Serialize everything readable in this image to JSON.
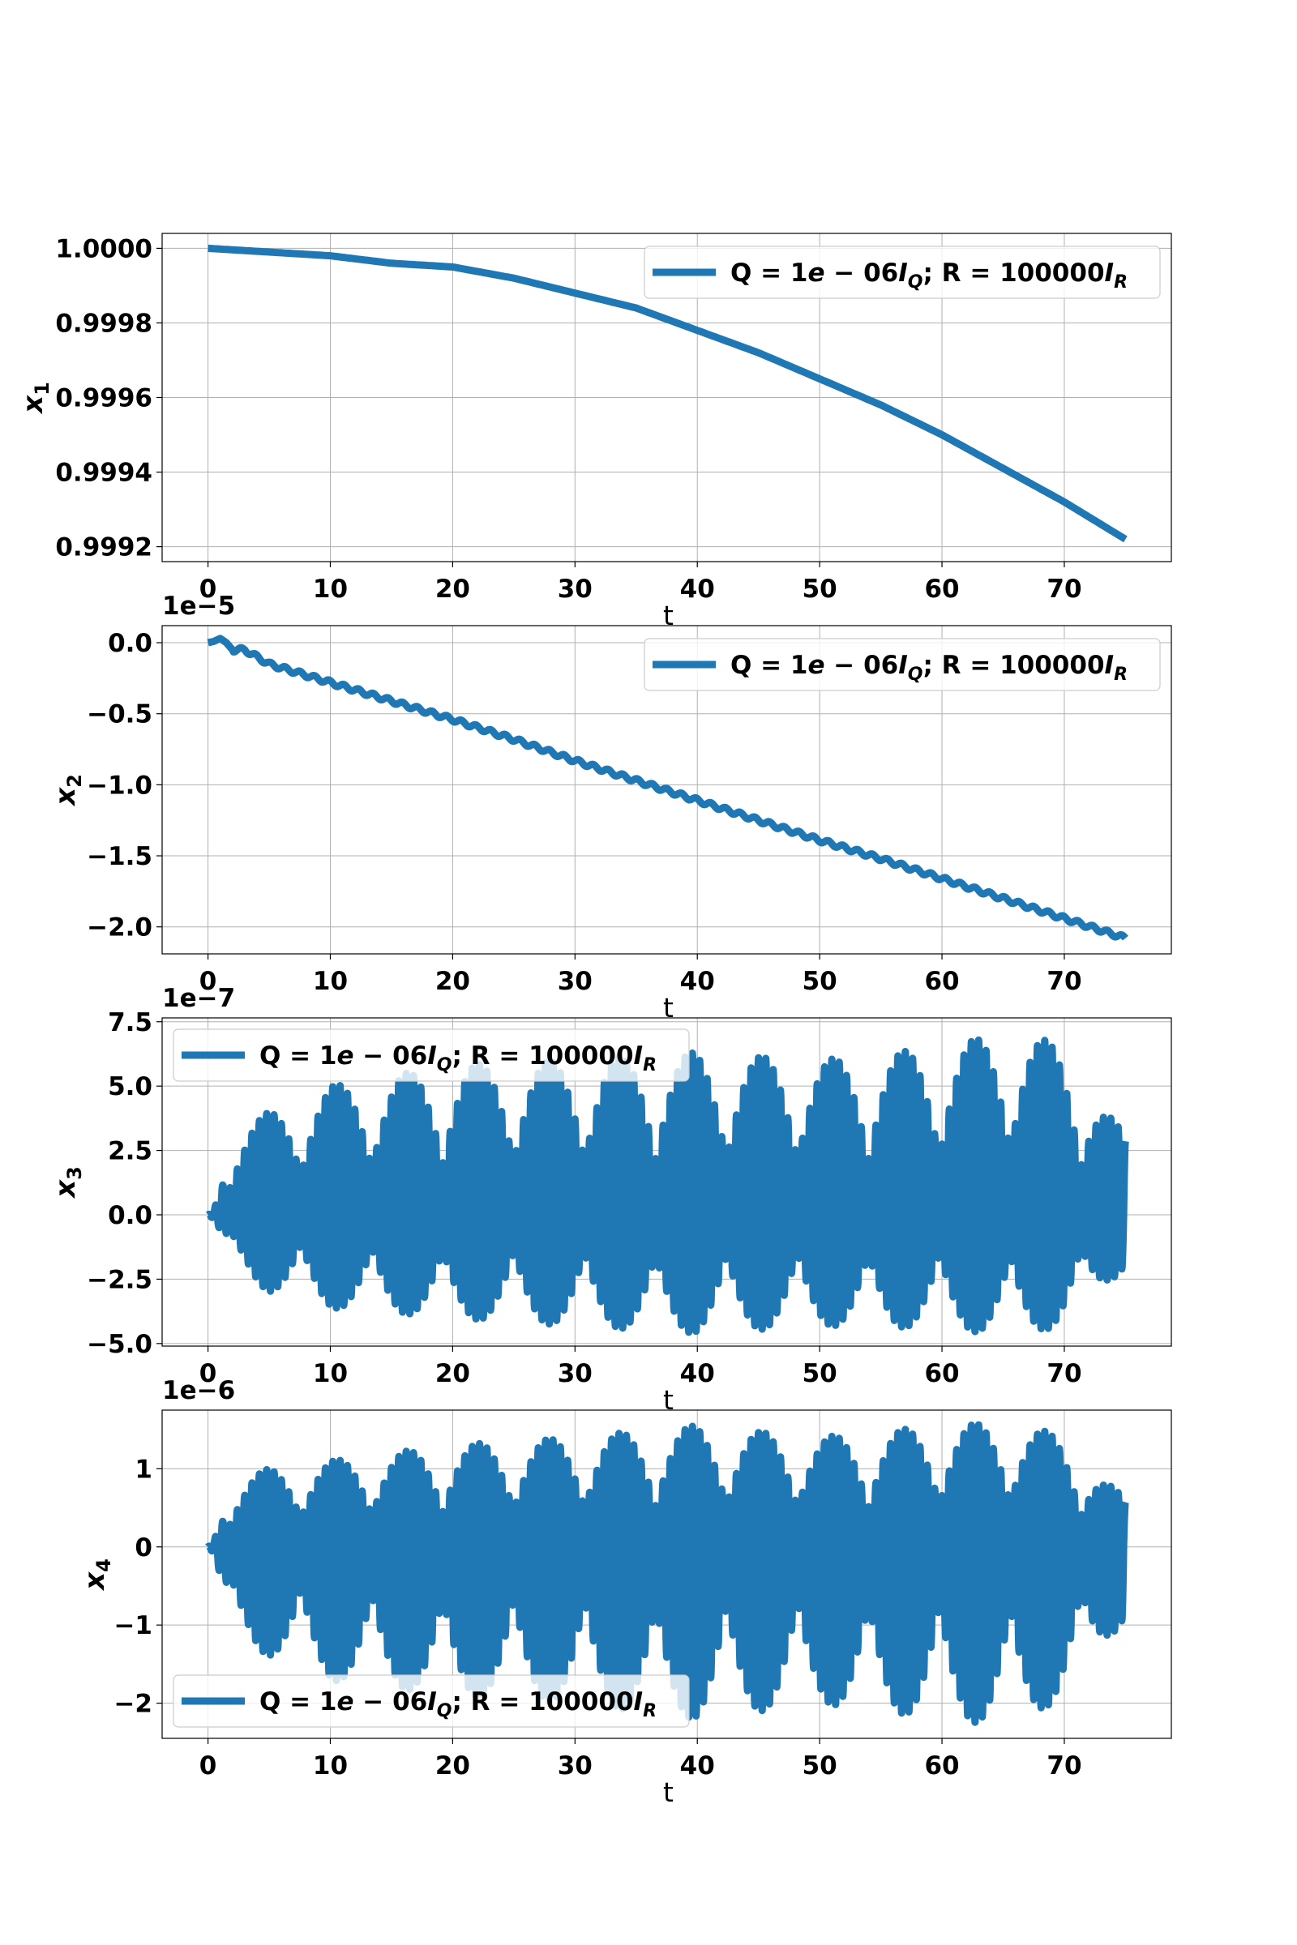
{
  "chart_data": [
    {
      "type": "line",
      "xlabel": "t",
      "ylabel": "x1",
      "ylabel_symbol": "x",
      "ylabel_sub": "1",
      "offset_label": "",
      "xlim": [
        -3.75,
        78.75
      ],
      "ylim": [
        0.99916,
        1.00004
      ],
      "xticks": [
        0,
        10,
        20,
        30,
        40,
        50,
        60,
        70
      ],
      "xtick_labels": [
        "0",
        "10",
        "20",
        "30",
        "40",
        "50",
        "60",
        "70"
      ],
      "yticks": [
        0.9992,
        0.9994,
        0.9996,
        0.9998,
        1.0
      ],
      "ytick_labels": [
        "0.9992",
        "0.9994",
        "0.9996",
        "0.9998",
        "1.0000"
      ],
      "grid": true,
      "legend_position": "upper right",
      "series": [
        {
          "name": "Q = 1e − 06I_Q; R = 100000I_R",
          "color": "#1f77b4",
          "x": [
            0,
            5,
            10,
            15,
            20,
            25,
            30,
            35,
            40,
            45,
            50,
            55,
            60,
            65,
            70,
            75
          ],
          "y": [
            1.0,
            0.99999,
            0.99998,
            0.99996,
            0.99995,
            0.99992,
            0.99988,
            0.99984,
            0.99978,
            0.99972,
            0.99965,
            0.99958,
            0.9995,
            0.99941,
            0.99932,
            0.99922
          ]
        }
      ]
    },
    {
      "type": "line",
      "xlabel": "t",
      "ylabel": "x2",
      "ylabel_symbol": "x",
      "ylabel_sub": "2",
      "offset_label": "1e−5",
      "offset_scale": 1e-05,
      "xlim": [
        -3.75,
        78.75
      ],
      "ylim": [
        -2.19,
        0.12
      ],
      "xticks": [
        0,
        10,
        20,
        30,
        40,
        50,
        60,
        70
      ],
      "xtick_labels": [
        "0",
        "10",
        "20",
        "30",
        "40",
        "50",
        "60",
        "70"
      ],
      "yticks": [
        -2.0,
        -1.5,
        -1.0,
        -0.5,
        0.0
      ],
      "ytick_labels": [
        "−2.0",
        "−1.5",
        "−1.0",
        "−0.5",
        "0.0"
      ],
      "grid": true,
      "legend_position": "upper right",
      "series": [
        {
          "name": "Q = 1e − 06I_Q; R = 100000I_R",
          "color": "#1f77b4",
          "x": [
            0,
            0.5,
            1,
            1.5,
            2,
            3,
            5,
            10,
            15,
            20,
            25,
            30,
            35,
            40,
            45,
            50,
            55,
            60,
            65,
            70,
            75
          ],
          "y": [
            0.0,
            0.01,
            0.03,
            0.0,
            -0.05,
            -0.05,
            -0.15,
            -0.28,
            -0.41,
            -0.54,
            -0.68,
            -0.83,
            -0.97,
            -1.11,
            -1.25,
            -1.39,
            -1.52,
            -1.66,
            -1.8,
            -1.94,
            -2.08
          ],
          "wiggle_amplitude": 0.015,
          "wiggle_period": 1.2
        }
      ]
    },
    {
      "type": "line",
      "xlabel": "t",
      "ylabel": "x3",
      "ylabel_symbol": "x",
      "ylabel_sub": "3",
      "offset_label": "1e−7",
      "offset_scale": 1e-07,
      "xlim": [
        -3.75,
        78.75
      ],
      "ylim": [
        -5.1,
        7.65
      ],
      "xticks": [
        0,
        10,
        20,
        30,
        40,
        50,
        60,
        70
      ],
      "xtick_labels": [
        "0",
        "10",
        "20",
        "30",
        "40",
        "50",
        "60",
        "70"
      ],
      "yticks": [
        -5.0,
        -2.5,
        0.0,
        2.5,
        5.0,
        7.5
      ],
      "ytick_labels": [
        "−5.0",
        "−2.5",
        "0.0",
        "2.5",
        "5.0",
        "7.5"
      ],
      "grid": true,
      "legend_position": "upper left",
      "series": [
        {
          "name": "Q = 1e − 06I_Q; R = 100000I_R",
          "color": "#1f77b4",
          "oscillation": "beating",
          "amplitude_envelope": {
            "t": [
              0,
              0.5,
              1.5,
              5,
              10,
              20,
              30,
              40,
              50,
              60,
              66,
              70,
              75
            ],
            "pos": [
              0.0,
              0.2,
              2.9,
              4.0,
              5.0,
              5.8,
              6.0,
              6.3,
              6.0,
              6.5,
              7.2,
              6.5,
              3.0
            ],
            "neg": [
              0.0,
              -0.2,
              -1.6,
              -3.0,
              -3.6,
              -4.0,
              -4.3,
              -4.6,
              -4.3,
              -4.4,
              -4.7,
              -4.3,
              -2.0
            ]
          },
          "fast_period": 0.6,
          "beat_period": 5.8
        }
      ]
    },
    {
      "type": "line",
      "xlabel": "t",
      "ylabel": "x4",
      "ylabel_symbol": "x",
      "ylabel_sub": "4",
      "offset_label": "1e−6",
      "offset_scale": 1e-06,
      "xlim": [
        -3.75,
        78.75
      ],
      "ylim": [
        -2.45,
        1.75
      ],
      "xticks": [
        0,
        10,
        20,
        30,
        40,
        50,
        60,
        70
      ],
      "xtick_labels": [
        "0",
        "10",
        "20",
        "30",
        "40",
        "50",
        "60",
        "70"
      ],
      "yticks": [
        -2,
        -1,
        0,
        1
      ],
      "ytick_labels": [
        "−2",
        "−1",
        "0",
        "1"
      ],
      "grid": true,
      "legend_position": "lower left",
      "series": [
        {
          "name": "Q = 1e − 06I_Q; R = 100000I_R",
          "color": "#1f77b4",
          "oscillation": "beating",
          "amplitude_envelope": {
            "t": [
              0,
              0.5,
              1.5,
              5,
              10,
              20,
              30,
              40,
              50,
              60,
              66,
              70,
              75
            ],
            "pos": [
              0.0,
              0.1,
              0.8,
              1.0,
              1.1,
              1.3,
              1.4,
              1.55,
              1.4,
              1.55,
              1.6,
              1.4,
              0.6
            ],
            "neg": [
              0.0,
              -0.1,
              -1.0,
              -1.4,
              -1.7,
              -1.9,
              -2.0,
              -2.2,
              -2.0,
              -2.2,
              -2.3,
              -1.9,
              -0.9
            ]
          },
          "fast_period": 0.6,
          "beat_period": 5.8
        }
      ]
    }
  ]
}
